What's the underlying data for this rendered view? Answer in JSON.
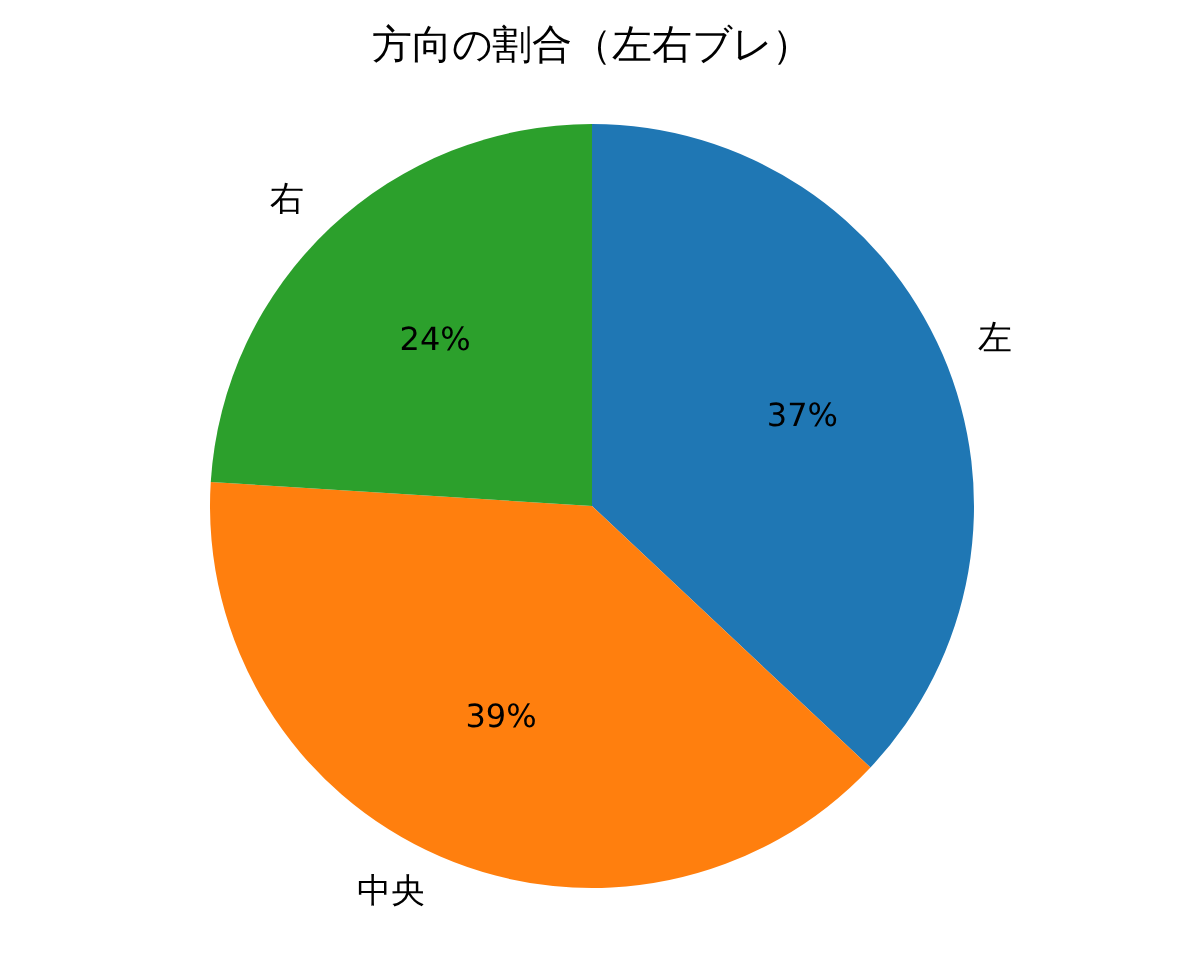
{
  "chart_data": {
    "type": "pie",
    "title": "方向の割合（左右ブレ）",
    "categories": [
      "左",
      "中央",
      "右"
    ],
    "values": [
      37,
      39,
      24
    ],
    "colors": [
      "#1f77b4",
      "#ff7f0e",
      "#2ca02c"
    ],
    "value_labels": [
      "37%",
      "39%",
      "24%"
    ]
  }
}
